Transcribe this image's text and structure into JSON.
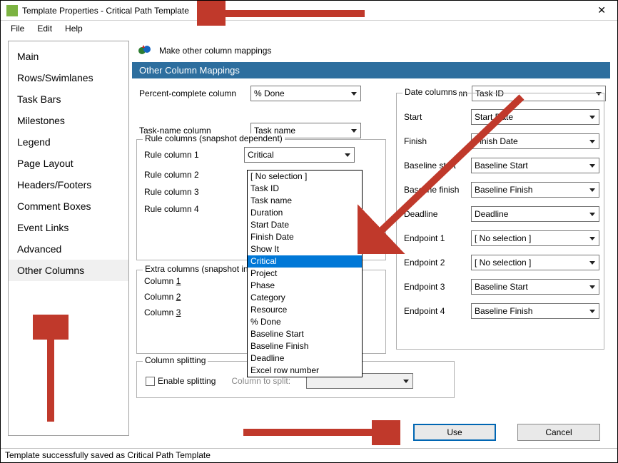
{
  "window": {
    "title": "Template Properties - Critical Path Template"
  },
  "menu": {
    "file": "File",
    "edit": "Edit",
    "help": "Help"
  },
  "nav": {
    "items": [
      {
        "label": "Main"
      },
      {
        "label": "Rows/Swimlanes"
      },
      {
        "label": "Task Bars"
      },
      {
        "label": "Milestones"
      },
      {
        "label": "Legend"
      },
      {
        "label": "Page Layout"
      },
      {
        "label": "Headers/Footers"
      },
      {
        "label": "Comment Boxes"
      },
      {
        "label": "Event Links"
      },
      {
        "label": "Advanced"
      },
      {
        "label": "Other Columns"
      }
    ]
  },
  "header": {
    "title": "Make other column mappings"
  },
  "banner": {
    "text": "Other Column Mappings"
  },
  "left": {
    "pct_label": "Percent-complete column",
    "pct_value": "% Done",
    "taskname_label": "Task-name column",
    "taskname_value": "Task name",
    "rule_legend": "Rule columns (snapshot dependent)",
    "rc1_label": "Rule column 1",
    "rc1_value": "Critical",
    "rc2_label": "Rule column 2",
    "rc3_label": "Rule column 3",
    "rc4_label": "Rule column 4",
    "extra_legend": "Extra columns (snapshot independent)",
    "c1_label": "Column ",
    "c1_u": "1",
    "c2_label": "Column ",
    "c2_u": "2",
    "c3_label": "Column ",
    "c3_u": "3"
  },
  "right": {
    "id_label": "ID column",
    "id_value": "Task ID",
    "date_legend": "Date columns",
    "start_label": "Start",
    "start_value": "Start Date",
    "finish_label": "Finish",
    "finish_value": "Finish Date",
    "bs_label": "Baseline start",
    "bs_value": "Baseline Start",
    "bf_label": "Baseline finish",
    "bf_value": "Baseline Finish",
    "dl_label": "Deadline",
    "dl_value": "Deadline",
    "e1_label": "Endpoint 1",
    "e1_value": "[ No selection ]",
    "e2_label": "Endpoint 2",
    "e2_value": "[ No selection ]",
    "e3_label": "Endpoint 3",
    "e3_value": "Baseline Start",
    "e4_label": "Endpoint 4",
    "e4_value": "Baseline Finish"
  },
  "split": {
    "legend": "Column splitting",
    "enable": "Enable splitting",
    "col_label": "Column to split:"
  },
  "dropdown": {
    "options": [
      "[ No selection ]",
      "Task ID",
      "Task name",
      "Duration",
      "Start Date",
      "Finish Date",
      "Show It",
      "Critical",
      "Project",
      "Phase",
      "Category",
      "Resource",
      "% Done",
      "Baseline Start",
      "Baseline Finish",
      "Deadline",
      "Excel row number"
    ],
    "selected_index": 7
  },
  "buttons": {
    "use": "Use",
    "cancel": "Cancel"
  },
  "status": {
    "text": "Template successfully saved as Critical Path Template"
  },
  "colors": {
    "banner": "#2d6e9e",
    "highlight": "#0078d7",
    "arrow": "#c0392b"
  }
}
